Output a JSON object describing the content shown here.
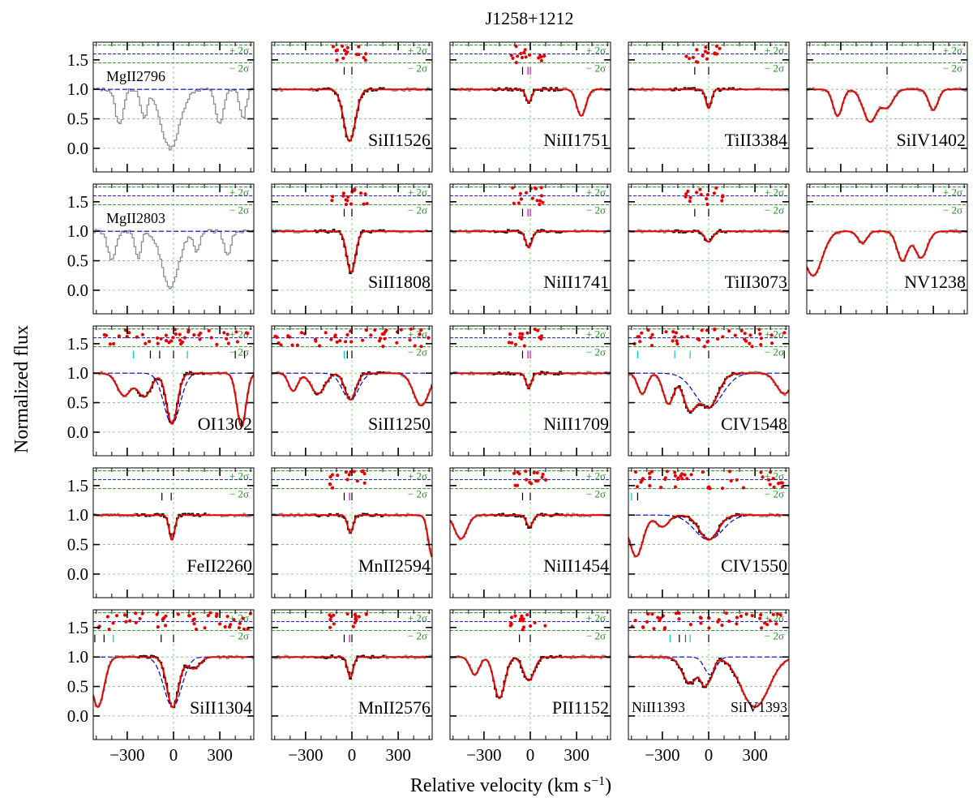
{
  "title": "J1258+1212",
  "xlabel": "Relative velocity (km s$^{-1}$)",
  "xlabel_text": "Relative velocity (km s",
  "xlabel_sup": "−1",
  "xlabel_close": ")",
  "ylabel": "Normalized flux",
  "sigma_plus": "+ 2σ",
  "sigma_minus": "− 2σ",
  "colors": {
    "model": "#e60000",
    "data_fit": "#000000",
    "data_other": "#8c8c8c",
    "component_model": "#0000cc",
    "grid": "#66cc66",
    "sigma": "#228b22",
    "residual": "#e60000",
    "tick_cyan": "#00cccc",
    "tick_magenta": "#cc00cc"
  },
  "chart_data": {
    "type": "line",
    "layout": "5 rows x 5 columns of spectral line panels",
    "xlim": [
      -520,
      520
    ],
    "ylim": [
      -0.4,
      1.8
    ],
    "xticks": [
      -300,
      0,
      300
    ],
    "yticks": [
      0.0,
      0.5,
      1.0,
      1.5
    ],
    "grid": true,
    "panels": [
      {
        "label": "MgII2796",
        "row": 0,
        "col": 0,
        "label_pos": "top-left",
        "residuals": false,
        "model": false,
        "data": "other",
        "continuum_blue": true,
        "ticks": [],
        "absorption": [
          {
            "v": -20,
            "depth": 1.0,
            "width": 60
          },
          {
            "v": -350,
            "depth": 0.6,
            "width": 25
          },
          {
            "v": -190,
            "depth": 0.5,
            "width": 20
          },
          {
            "v": 300,
            "depth": 0.6,
            "width": 25
          },
          {
            "v": 450,
            "depth": 0.5,
            "width": 20
          }
        ]
      },
      {
        "label": "SiII1526",
        "row": 0,
        "col": 1,
        "label_pos": "bottom-right",
        "residuals": true,
        "model": true,
        "data": "fit",
        "ticks": [
          {
            "v": -50,
            "c": "k"
          },
          {
            "v": 0,
            "c": "k"
          }
        ],
        "absorption": [
          {
            "v": -15,
            "depth": 0.88,
            "width": 38
          }
        ]
      },
      {
        "label": "NiII1751",
        "row": 0,
        "col": 2,
        "label_pos": "bottom-right",
        "residuals": true,
        "model": true,
        "data": "fit",
        "ticks": [
          {
            "v": -50,
            "c": "k"
          },
          {
            "v": -15,
            "c": "m"
          },
          {
            "v": 0,
            "c": "m"
          }
        ],
        "absorption": [
          {
            "v": -10,
            "depth": 0.22,
            "width": 18
          },
          {
            "v": 330,
            "depth": 0.45,
            "width": 30
          }
        ]
      },
      {
        "label": "TiII3384",
        "row": 0,
        "col": 3,
        "label_pos": "bottom-right",
        "residuals": true,
        "model": true,
        "data": "fit",
        "ticks": [
          {
            "v": -90,
            "c": "k"
          },
          {
            "v": 0,
            "c": "k"
          }
        ],
        "absorption": [
          {
            "v": 0,
            "depth": 0.32,
            "width": 18
          }
        ]
      },
      {
        "label": "SiIV1402",
        "row": 0,
        "col": 4,
        "label_pos": "bottom-right",
        "residuals": false,
        "model": true,
        "data": "other",
        "ticks": [
          {
            "v": 0,
            "c": "k"
          }
        ],
        "absorption": [
          {
            "v": 0,
            "depth": 0.3,
            "width": 40
          },
          {
            "v": -320,
            "depth": 0.45,
            "width": 30
          },
          {
            "v": -110,
            "depth": 0.55,
            "width": 45
          },
          {
            "v": 300,
            "depth": 0.35,
            "width": 30
          }
        ]
      },
      {
        "label": "MgII2803",
        "row": 1,
        "col": 0,
        "label_pos": "top-left",
        "residuals": false,
        "model": false,
        "data": "other",
        "continuum_blue": true,
        "ticks": [],
        "absorption": [
          {
            "v": -20,
            "depth": 0.95,
            "width": 55
          },
          {
            "v": -400,
            "depth": 0.5,
            "width": 25
          },
          {
            "v": -230,
            "depth": 0.45,
            "width": 20
          },
          {
            "v": 150,
            "depth": 0.35,
            "width": 20
          },
          {
            "v": 350,
            "depth": 0.4,
            "width": 22
          }
        ]
      },
      {
        "label": "SiII1808",
        "row": 1,
        "col": 1,
        "label_pos": "bottom-right",
        "residuals": true,
        "model": true,
        "data": "fit",
        "ticks": [
          {
            "v": -50,
            "c": "k"
          },
          {
            "v": 0,
            "c": "k"
          }
        ],
        "absorption": [
          {
            "v": -5,
            "depth": 0.7,
            "width": 28
          }
        ]
      },
      {
        "label": "NiII1741",
        "row": 1,
        "col": 2,
        "label_pos": "bottom-right",
        "residuals": true,
        "model": true,
        "data": "fit",
        "ticks": [
          {
            "v": -50,
            "c": "k"
          },
          {
            "v": -15,
            "c": "m"
          },
          {
            "v": 0,
            "c": "m"
          }
        ],
        "absorption": [
          {
            "v": -10,
            "depth": 0.28,
            "width": 20
          }
        ]
      },
      {
        "label": "TiII3073",
        "row": 1,
        "col": 3,
        "label_pos": "bottom-right",
        "residuals": true,
        "model": true,
        "data": "fit",
        "ticks": [
          {
            "v": -90,
            "c": "k"
          },
          {
            "v": 0,
            "c": "k"
          }
        ],
        "absorption": [
          {
            "v": 0,
            "depth": 0.18,
            "width": 25
          }
        ]
      },
      {
        "label": "NV1238",
        "row": 1,
        "col": 4,
        "label_pos": "bottom-right",
        "residuals": false,
        "model": true,
        "data": "other",
        "ticks": [],
        "absorption": [
          {
            "v": -480,
            "depth": 0.75,
            "width": 60
          },
          {
            "v": 100,
            "depth": 0.5,
            "width": 35
          },
          {
            "v": 220,
            "depth": 0.45,
            "width": 40
          },
          {
            "v": -160,
            "depth": 0.2,
            "width": 30
          }
        ]
      },
      {
        "label": "OI1302",
        "row": 2,
        "col": 0,
        "label_pos": "bottom-right",
        "residuals": true,
        "model": true,
        "data": "fit",
        "component": true,
        "ticks": [
          {
            "v": -260,
            "c": "c"
          },
          {
            "v": -150,
            "c": "k"
          },
          {
            "v": -90,
            "c": "k"
          },
          {
            "v": 0,
            "c": "k"
          },
          {
            "v": 90,
            "c": "c"
          },
          {
            "v": 400,
            "c": "k"
          },
          {
            "v": 460,
            "c": "k"
          }
        ],
        "absorption": [
          {
            "v": -320,
            "depth": 0.38,
            "width": 45
          },
          {
            "v": -190,
            "depth": 0.4,
            "width": 45
          },
          {
            "v": -10,
            "depth": 0.86,
            "width": 35
          },
          {
            "v": 440,
            "depth": 0.9,
            "width": 30
          }
        ]
      },
      {
        "label": "SiII1250",
        "row": 2,
        "col": 1,
        "label_pos": "bottom-right",
        "residuals": true,
        "model": true,
        "data": "fit",
        "component": true,
        "ticks": [
          {
            "v": -50,
            "c": "c"
          },
          {
            "v": -30,
            "c": "k"
          },
          {
            "v": 0,
            "c": "k"
          }
        ],
        "absorption": [
          {
            "v": -10,
            "depth": 0.45,
            "width": 35
          },
          {
            "v": -380,
            "depth": 0.3,
            "width": 30
          },
          {
            "v": -220,
            "depth": 0.35,
            "width": 45
          },
          {
            "v": 450,
            "depth": 0.55,
            "width": 50
          }
        ]
      },
      {
        "label": "NiII1709",
        "row": 2,
        "col": 2,
        "label_pos": "bottom-right",
        "residuals": true,
        "model": true,
        "data": "fit",
        "ticks": [
          {
            "v": -50,
            "c": "k"
          },
          {
            "v": -15,
            "c": "m"
          },
          {
            "v": 0,
            "c": "m"
          }
        ],
        "absorption": [
          {
            "v": -10,
            "depth": 0.25,
            "width": 18
          }
        ]
      },
      {
        "label": "CIV1548",
        "row": 2,
        "col": 3,
        "label_pos": "bottom-right",
        "residuals": true,
        "model": true,
        "data": "fit",
        "component": true,
        "ticks": [
          {
            "v": -460,
            "c": "c"
          },
          {
            "v": -220,
            "c": "c"
          },
          {
            "v": -120,
            "c": "c"
          },
          {
            "v": 0,
            "c": "k"
          },
          {
            "v": 490,
            "c": "k"
          }
        ],
        "absorption": [
          {
            "v": -430,
            "depth": 0.35,
            "width": 30
          },
          {
            "v": -260,
            "depth": 0.52,
            "width": 35
          },
          {
            "v": -120,
            "depth": 0.62,
            "width": 45
          },
          {
            "v": 0,
            "depth": 0.58,
            "width": 60
          },
          {
            "v": 490,
            "depth": 0.35,
            "width": 50
          }
        ]
      },
      {
        "label": "FeII2260",
        "row": 3,
        "col": 0,
        "label_pos": "bottom-right",
        "residuals": false,
        "model": true,
        "data": "fit",
        "ticks": [
          {
            "v": -75,
            "c": "k"
          },
          {
            "v": -15,
            "c": "k"
          }
        ],
        "absorption": [
          {
            "v": -10,
            "depth": 0.42,
            "width": 18
          }
        ]
      },
      {
        "label": "MnII2594",
        "row": 3,
        "col": 1,
        "label_pos": "bottom-right",
        "residuals": true,
        "model": true,
        "data": "fit",
        "ticks": [
          {
            "v": -50,
            "c": "k"
          },
          {
            "v": -15,
            "c": "m"
          },
          {
            "v": 0,
            "c": "k"
          }
        ],
        "absorption": [
          {
            "v": -10,
            "depth": 0.3,
            "width": 18
          },
          {
            "v": 520,
            "depth": 0.7,
            "width": 25
          }
        ]
      },
      {
        "label": "NiII1454",
        "row": 3,
        "col": 2,
        "label_pos": "bottom-right",
        "residuals": true,
        "model": true,
        "data": "fit",
        "ticks": [
          {
            "v": -50,
            "c": "k"
          },
          {
            "v": 0,
            "c": "k"
          }
        ],
        "absorption": [
          {
            "v": -5,
            "depth": 0.2,
            "width": 20
          },
          {
            "v": -450,
            "depth": 0.4,
            "width": 40
          }
        ]
      },
      {
        "label": "CIV1550",
        "row": 3,
        "col": 3,
        "label_pos": "bottom-right",
        "residuals": true,
        "model": true,
        "data": "fit",
        "component": true,
        "ticks": [
          {
            "v": -500,
            "c": "c"
          },
          {
            "v": -460,
            "c": "k"
          }
        ],
        "absorption": [
          {
            "v": -470,
            "depth": 0.7,
            "width": 45
          },
          {
            "v": -300,
            "depth": 0.2,
            "width": 40
          },
          {
            "v": 0,
            "depth": 0.42,
            "width": 60
          }
        ]
      },
      {
        "label": "SiII1304",
        "row": 4,
        "col": 0,
        "label_pos": "bottom-right",
        "residuals": true,
        "model": true,
        "data": "fit",
        "component": true,
        "ticks": [
          {
            "v": -510,
            "c": "k"
          },
          {
            "v": -450,
            "c": "k"
          },
          {
            "v": -390,
            "c": "c"
          },
          {
            "v": -80,
            "c": "k"
          },
          {
            "v": 0,
            "c": "k"
          }
        ],
        "absorption": [
          {
            "v": -490,
            "depth": 0.85,
            "width": 40
          },
          {
            "v": -5,
            "depth": 0.85,
            "width": 38
          },
          {
            "v": 130,
            "depth": 0.2,
            "width": 40
          }
        ]
      },
      {
        "label": "MnII2576",
        "row": 4,
        "col": 1,
        "label_pos": "bottom-right",
        "residuals": true,
        "model": true,
        "data": "fit",
        "ticks": [
          {
            "v": -50,
            "c": "k"
          },
          {
            "v": -15,
            "c": "m"
          },
          {
            "v": 0,
            "c": "k"
          }
        ],
        "absorption": [
          {
            "v": -10,
            "depth": 0.35,
            "width": 18
          }
        ]
      },
      {
        "label": "PII1152",
        "row": 4,
        "col": 2,
        "label_pos": "bottom-right",
        "residuals": true,
        "model": true,
        "data": "fit",
        "ticks": [
          {
            "v": -70,
            "c": "k"
          },
          {
            "v": 0,
            "c": "k"
          }
        ],
        "absorption": [
          {
            "v": -10,
            "depth": 0.4,
            "width": 35
          },
          {
            "v": -200,
            "depth": 0.7,
            "width": 35
          },
          {
            "v": -360,
            "depth": 0.3,
            "width": 30
          }
        ]
      },
      {
        "label": "NiII1393",
        "label2": "SiIV1393",
        "row": 4,
        "col": 3,
        "label_pos": "bottom-split",
        "residuals": true,
        "model": true,
        "data": "fit",
        "component": true,
        "ticks": [
          {
            "v": -250,
            "c": "c"
          },
          {
            "v": -190,
            "c": "k"
          },
          {
            "v": -150,
            "c": "m"
          },
          {
            "v": -120,
            "c": "c"
          },
          {
            "v": 0,
            "c": "k"
          }
        ],
        "absorption": [
          {
            "v": -120,
            "depth": 0.45,
            "width": 50
          },
          {
            "v": -30,
            "depth": 0.4,
            "width": 25
          },
          {
            "v": 10,
            "depth": 0.3,
            "width": 25
          },
          {
            "v": 300,
            "depth": 0.85,
            "width": 90
          }
        ]
      }
    ]
  }
}
